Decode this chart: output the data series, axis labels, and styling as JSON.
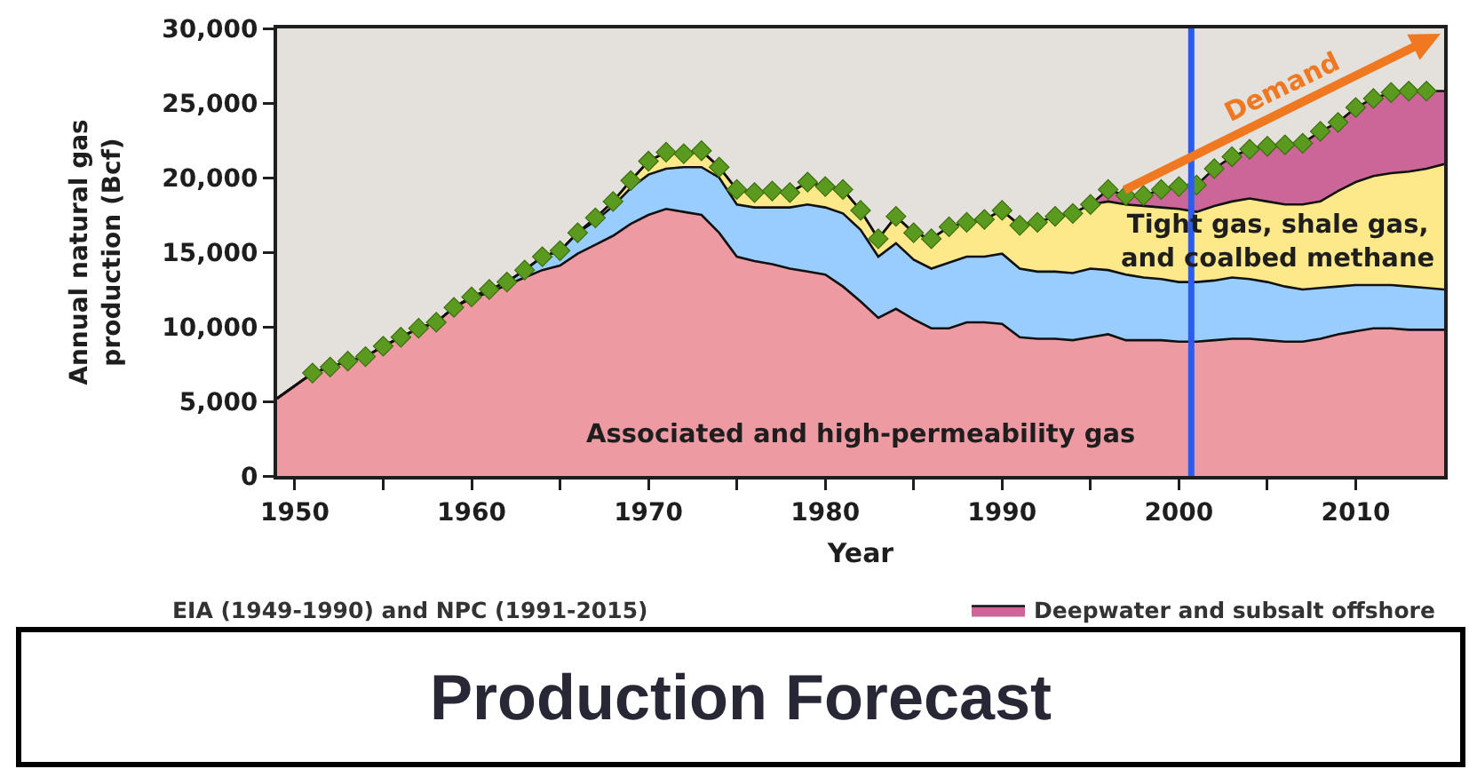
{
  "chart_data": {
    "type": "area",
    "title": "Production Forecast",
    "xlabel": "Year",
    "ylabel": "Annual natural gas production (Bcf)",
    "x": [
      1949,
      1951,
      1952,
      1953,
      1954,
      1955,
      1956,
      1957,
      1958,
      1959,
      1960,
      1961,
      1962,
      1963,
      1964,
      1965,
      1966,
      1967,
      1968,
      1969,
      1970,
      1971,
      1972,
      1973,
      1974,
      1975,
      1976,
      1977,
      1978,
      1979,
      1980,
      1981,
      1982,
      1983,
      1984,
      1985,
      1986,
      1987,
      1988,
      1989,
      1990,
      1991,
      1992,
      1993,
      1994,
      1995,
      1996,
      1997,
      1998,
      1999,
      2000,
      2001,
      2002,
      2003,
      2004,
      2005,
      2006,
      2007,
      2008,
      2009,
      2010,
      2011,
      2012,
      2013,
      2014,
      2015
    ],
    "stacked": true,
    "series": [
      {
        "name": "Associated and high-permeability gas",
        "color": "#ee9aa3",
        "values": [
          5200,
          6900,
          7300,
          7700,
          8000,
          8700,
          9300,
          9900,
          10300,
          11300,
          11900,
          12300,
          12800,
          13300,
          13800,
          14100,
          14900,
          15500,
          16100,
          16900,
          17500,
          17900,
          17700,
          17500,
          16300,
          14700,
          14400,
          14200,
          13900,
          13700,
          13500,
          12700,
          11700,
          10600,
          11200,
          10500,
          9900,
          9900,
          10300,
          10300,
          10200,
          9300,
          9200,
          9200,
          9100,
          9300,
          9500,
          9100,
          9100,
          9100,
          9000,
          9000,
          9100,
          9200,
          9200,
          9100,
          9000,
          9000,
          9200,
          9500,
          9700,
          9900,
          9900,
          9800,
          9800,
          9800
        ]
      },
      {
        "color": "#99ccff",
        "values": [
          0,
          0,
          0,
          0,
          0,
          0,
          0,
          0,
          0,
          0,
          100,
          200,
          200,
          500,
          900,
          1000,
          1400,
          1600,
          2000,
          2400,
          2700,
          2700,
          3000,
          3200,
          3700,
          3500,
          3600,
          3800,
          4100,
          4500,
          4500,
          4900,
          4800,
          4100,
          4400,
          4000,
          4000,
          4400,
          4400,
          4400,
          4700,
          4600,
          4500,
          4500,
          4500,
          4600,
          4300,
          4400,
          4200,
          4100,
          4000,
          4000,
          4000,
          4100,
          4000,
          3900,
          3700,
          3500,
          3400,
          3200,
          3100,
          2900,
          2900,
          2900,
          2800,
          2700
        ]
      },
      {
        "name": "Tight gas, shale gas, and coalbed methane",
        "color": "#fde98a",
        "values": [
          0,
          0,
          0,
          0,
          0,
          0,
          0,
          0,
          0,
          0,
          0,
          0,
          0,
          0,
          0,
          0,
          0,
          200,
          300,
          500,
          900,
          1100,
          900,
          1100,
          700,
          1000,
          1000,
          1100,
          1000,
          1500,
          1400,
          1600,
          1300,
          1200,
          1800,
          1800,
          2000,
          2400,
          2300,
          2500,
          2900,
          2900,
          3300,
          3700,
          4000,
          4300,
          4600,
          4700,
          4800,
          4800,
          4900,
          4700,
          5000,
          5100,
          5400,
          5400,
          5500,
          5700,
          5800,
          6400,
          6900,
          7300,
          7500,
          7700,
          8000,
          8400
        ]
      },
      {
        "name": "Deepwater and subsalt offshore",
        "color": "#cc6699",
        "values": [
          0,
          0,
          0,
          0,
          0,
          0,
          0,
          0,
          0,
          0,
          0,
          0,
          0,
          0,
          0,
          0,
          0,
          0,
          0,
          0,
          0,
          0,
          0,
          0,
          0,
          0,
          0,
          0,
          0,
          0,
          0,
          0,
          0,
          0,
          0,
          0,
          0,
          0,
          0,
          0,
          0,
          0,
          0,
          0,
          0,
          0,
          800,
          600,
          700,
          1200,
          1500,
          1800,
          2500,
          3000,
          3300,
          3700,
          4000,
          4100,
          4700,
          4600,
          5000,
          5200,
          5400,
          5400,
          5200,
          4900
        ]
      },
      {
        "type": "scatter",
        "color": "#5a9a1e",
        "marker": "diamond",
        "x": [
          1951,
          1952,
          1953,
          1954,
          1955,
          1956,
          1957,
          1958,
          1959,
          1960,
          1961,
          1962,
          1963,
          1964,
          1965,
          1966,
          1967,
          1968,
          1969,
          1970,
          1971,
          1972,
          1973,
          1974,
          1975,
          1976,
          1977,
          1978,
          1979,
          1980,
          1981,
          1982,
          1983,
          1984,
          1985,
          1986,
          1987,
          1988,
          1989,
          1990,
          1991,
          1992,
          1993,
          1994,
          1995,
          1996,
          1997,
          1998,
          1999,
          2000,
          2001,
          2002,
          2003,
          2004,
          2005,
          2006,
          2007,
          2008,
          2009,
          2010,
          2011,
          2012,
          2013,
          2014
        ],
        "values": [
          6900,
          7300,
          7700,
          8000,
          8700,
          9300,
          9900,
          10300,
          11300,
          12000,
          12500,
          13000,
          13800,
          14700,
          15100,
          16300,
          17300,
          18400,
          19800,
          21100,
          21700,
          21600,
          21800,
          20700,
          19200,
          19000,
          19100,
          19000,
          19700,
          19400,
          19200,
          17800,
          15900,
          17400,
          16300,
          15900,
          16700,
          17000,
          17200,
          17800,
          16800,
          17000,
          17400,
          17600,
          18200,
          19200,
          18800,
          18800,
          19200,
          19400,
          19500,
          20600,
          21400,
          21900,
          22100,
          22200,
          22300,
          23100,
          23700,
          24700,
          25300,
          25700,
          25800,
          25800
        ]
      }
    ],
    "xlim": [
      1949,
      2015
    ],
    "xticks": [
      1950,
      {
        "value": 1955,
        "label": null
      },
      1960,
      {
        "value": 1965,
        "label": null
      },
      1970,
      {
        "value": 1975,
        "label": null
      },
      1980,
      {
        "value": 1985,
        "label": null
      },
      1990,
      {
        "value": 1995,
        "label": null
      },
      2000,
      {
        "value": 2005,
        "label": null
      },
      2010
    ],
    "ylim": [
      0,
      30000
    ],
    "yticks": [
      0,
      {
        "value": 5000,
        "label": "5,000"
      },
      {
        "value": 10000,
        "label": "10,000"
      },
      {
        "value": 15000,
        "label": "15,000"
      },
      {
        "value": 20000,
        "label": "20,000"
      },
      {
        "value": 25000,
        "label": "25,000"
      },
      {
        "value": 30000,
        "label": "30,000"
      }
    ],
    "grid": false,
    "legend": "bottom right",
    "ref_lines": [
      {
        "axis": "x",
        "value": 2000.7,
        "color": "#2a5cf0"
      }
    ],
    "annotations": [
      "EIA (1949-1990) and NPC (1991-2015)",
      "Demand"
    ]
  }
}
